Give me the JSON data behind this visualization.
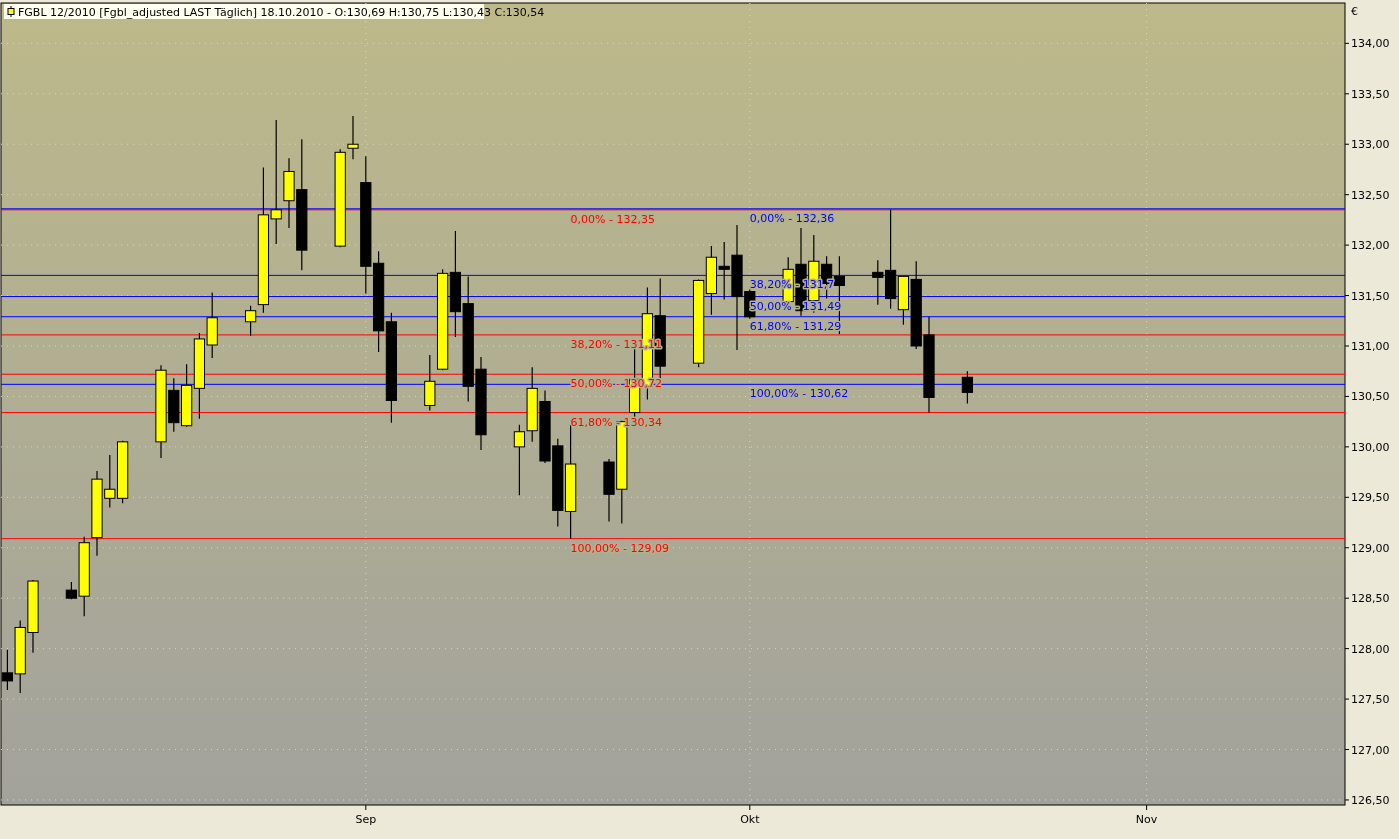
{
  "chart_data": {
    "type": "candlestick",
    "title": "FGBL 12/2010 [Fgbl_adjusted LAST Täglich] 18.10.2010 - O:130,69 H:130,75 L:130,43 C:130,54",
    "ylabel": "€",
    "x": [
      "2010-08-04",
      "2010-08-05",
      "2010-08-06",
      "2010-08-09",
      "2010-08-10",
      "2010-08-11",
      "2010-08-12",
      "2010-08-13",
      "2010-08-16",
      "2010-08-17",
      "2010-08-18",
      "2010-08-19",
      "2010-08-20",
      "2010-08-23",
      "2010-08-24",
      "2010-08-25",
      "2010-08-26",
      "2010-08-27",
      "2010-08-30",
      "2010-08-31",
      "2010-09-01",
      "2010-09-02",
      "2010-09-03",
      "2010-09-06",
      "2010-09-07",
      "2010-09-08",
      "2010-09-09",
      "2010-09-10",
      "2010-09-13",
      "2010-09-14",
      "2010-09-15",
      "2010-09-16",
      "2010-09-17",
      "2010-09-20",
      "2010-09-21",
      "2010-09-22",
      "2010-09-23",
      "2010-09-24",
      "2010-09-27",
      "2010-09-28",
      "2010-09-29",
      "2010-09-30",
      "2010-10-01",
      "2010-10-04",
      "2010-10-05",
      "2010-10-06",
      "2010-10-07",
      "2010-10-08",
      "2010-10-11",
      "2010-10-12",
      "2010-10-13",
      "2010-10-14",
      "2010-10-15",
      "2010-10-18"
    ],
    "ohlc": [
      [
        127.76,
        127.99,
        127.59,
        127.68
      ],
      [
        127.75,
        128.28,
        127.56,
        128.21
      ],
      [
        128.16,
        128.68,
        127.96,
        128.67
      ],
      [
        128.58,
        128.66,
        128.49,
        128.5
      ],
      [
        128.52,
        129.11,
        128.32,
        129.05
      ],
      [
        129.1,
        129.76,
        128.92,
        129.68
      ],
      [
        129.49,
        129.92,
        129.4,
        129.58
      ],
      [
        129.49,
        130.06,
        129.44,
        130.05
      ],
      [
        130.05,
        130.81,
        129.89,
        130.76
      ],
      [
        130.56,
        130.68,
        130.15,
        130.24
      ],
      [
        130.21,
        130.82,
        130.2,
        130.61
      ],
      [
        130.58,
        131.13,
        130.28,
        131.07
      ],
      [
        131.01,
        131.53,
        130.88,
        131.28
      ],
      [
        131.24,
        131.4,
        131.1,
        131.35
      ],
      [
        131.41,
        132.77,
        131.33,
        132.3
      ],
      [
        132.26,
        133.24,
        132.01,
        132.35
      ],
      [
        132.44,
        132.86,
        132.17,
        132.73
      ],
      [
        132.55,
        133.05,
        131.75,
        131.95
      ],
      [
        131.99,
        132.95,
        131.98,
        132.92
      ],
      [
        132.96,
        133.28,
        132.85,
        133.0
      ],
      [
        132.62,
        132.88,
        131.52,
        131.79
      ],
      [
        131.82,
        131.94,
        130.94,
        131.15
      ],
      [
        131.24,
        131.33,
        130.24,
        130.46
      ],
      [
        130.41,
        130.91,
        130.36,
        130.65
      ],
      [
        130.77,
        131.76,
        130.76,
        131.72
      ],
      [
        131.73,
        132.14,
        131.09,
        131.34
      ],
      [
        131.42,
        131.69,
        130.45,
        130.6
      ],
      [
        130.77,
        130.89,
        129.97,
        130.12
      ],
      [
        130.0,
        130.22,
        129.52,
        130.15
      ],
      [
        130.16,
        130.79,
        130.05,
        130.58
      ],
      [
        130.45,
        130.56,
        129.84,
        129.86
      ],
      [
        130.01,
        130.08,
        129.21,
        129.37
      ],
      [
        129.36,
        130.22,
        129.09,
        129.83
      ],
      [
        129.85,
        129.88,
        129.26,
        129.53
      ],
      [
        129.58,
        130.26,
        129.24,
        130.25
      ],
      [
        130.34,
        130.99,
        130.29,
        130.67
      ],
      [
        130.6,
        131.58,
        130.47,
        131.32
      ],
      [
        131.3,
        131.67,
        130.68,
        130.8
      ],
      [
        130.83,
        131.66,
        130.79,
        131.65
      ],
      [
        131.52,
        131.99,
        131.31,
        131.88
      ],
      [
        131.79,
        132.03,
        131.46,
        131.76
      ],
      [
        131.9,
        132.2,
        130.96,
        131.49
      ],
      [
        131.54,
        131.56,
        131.27,
        131.29
      ],
      [
        131.44,
        131.88,
        131.42,
        131.76
      ],
      [
        131.81,
        132.17,
        131.3,
        131.35
      ],
      [
        131.45,
        132.1,
        131.33,
        131.84
      ],
      [
        131.81,
        131.89,
        131.47,
        131.62
      ],
      [
        131.69,
        131.89,
        131.12,
        131.6
      ],
      [
        131.73,
        131.85,
        131.41,
        131.68
      ],
      [
        131.75,
        132.35,
        131.37,
        131.47
      ],
      [
        131.36,
        131.69,
        131.21,
        131.69
      ],
      [
        131.66,
        131.84,
        130.97,
        131.0
      ],
      [
        131.11,
        131.29,
        130.34,
        130.49
      ],
      [
        130.69,
        130.75,
        130.43,
        130.54
      ]
    ],
    "xlim": [
      "2010-08-03T12:00",
      "2010-11-16T12:00"
    ],
    "xticks": [
      {
        "value": "2010-09-01",
        "label": "Sep"
      },
      {
        "value": "2010-10-01",
        "label": "Okt"
      },
      {
        "value": "2010-11-01",
        "label": "Nov"
      }
    ],
    "ylim": [
      126.45,
      134.4
    ],
    "yticks": [
      {
        "value": 126.5,
        "label": "126,50"
      },
      {
        "value": 127,
        "label": "127,00"
      },
      {
        "value": 127.5,
        "label": "127,50"
      },
      {
        "value": 128,
        "label": "128,00"
      },
      {
        "value": 128.5,
        "label": "128,50"
      },
      {
        "value": 129,
        "label": "129,00"
      },
      {
        "value": 129.5,
        "label": "129,50"
      },
      {
        "value": 130,
        "label": "130,00"
      },
      {
        "value": 130.5,
        "label": "130,50"
      },
      {
        "value": 131,
        "label": "131,00"
      },
      {
        "value": 131.5,
        "label": "131,50"
      },
      {
        "value": 132,
        "label": "132,00"
      },
      {
        "value": 132.5,
        "label": "132,50"
      },
      {
        "value": 133,
        "label": "133,00"
      },
      {
        "value": 133.5,
        "label": "133,50"
      },
      {
        "value": 134,
        "label": "134,00"
      }
    ],
    "grid": true,
    "ref_lines": [
      {
        "axis": "y",
        "value": 132.35,
        "color": "#ff0000"
      },
      {
        "axis": "y",
        "value": 131.11,
        "color": "#ff0000"
      },
      {
        "axis": "y",
        "value": 130.72,
        "color": "#ff0000"
      },
      {
        "axis": "y",
        "value": 130.34,
        "color": "#ff0000"
      },
      {
        "axis": "y",
        "value": 129.09,
        "color": "#ff0000"
      },
      {
        "axis": "y",
        "value": 132.36,
        "color": "#0000ff"
      },
      {
        "axis": "y",
        "value": 131.7,
        "color": "#0000ff"
      },
      {
        "axis": "y",
        "value": 131.49,
        "color": "#0000ff"
      },
      {
        "axis": "y",
        "value": 131.29,
        "color": "#0000ff"
      },
      {
        "axis": "y",
        "value": 130.62,
        "color": "#0000ff"
      }
    ],
    "annotations": [
      {
        "text": "0,00% - 132,35",
        "x": "2010-09-17",
        "y": 132.35
      },
      {
        "text": "38,20% - 131,11",
        "x": "2010-09-17",
        "y": 131.11
      },
      {
        "text": "50,00% - 130,72",
        "x": "2010-09-17",
        "y": 130.72
      },
      {
        "text": "61,80% - 130,34",
        "x": "2010-09-17",
        "y": 130.34
      },
      {
        "text": "100,00% - 129,09",
        "x": "2010-09-17",
        "y": 129.09
      },
      {
        "text": "0,00% - 132,36",
        "x": "2010-10-01",
        "y": 132.36
      },
      {
        "text": "38,20% - 131,7",
        "x": "2010-10-01",
        "y": 131.7
      },
      {
        "text": "50,00% - 131,49",
        "x": "2010-10-01",
        "y": 131.49
      },
      {
        "text": "61,80% - 131,29",
        "x": "2010-10-01",
        "y": 131.29
      },
      {
        "text": "100,00% - 130,62",
        "x": "2010-10-01",
        "y": 130.62
      }
    ]
  }
}
